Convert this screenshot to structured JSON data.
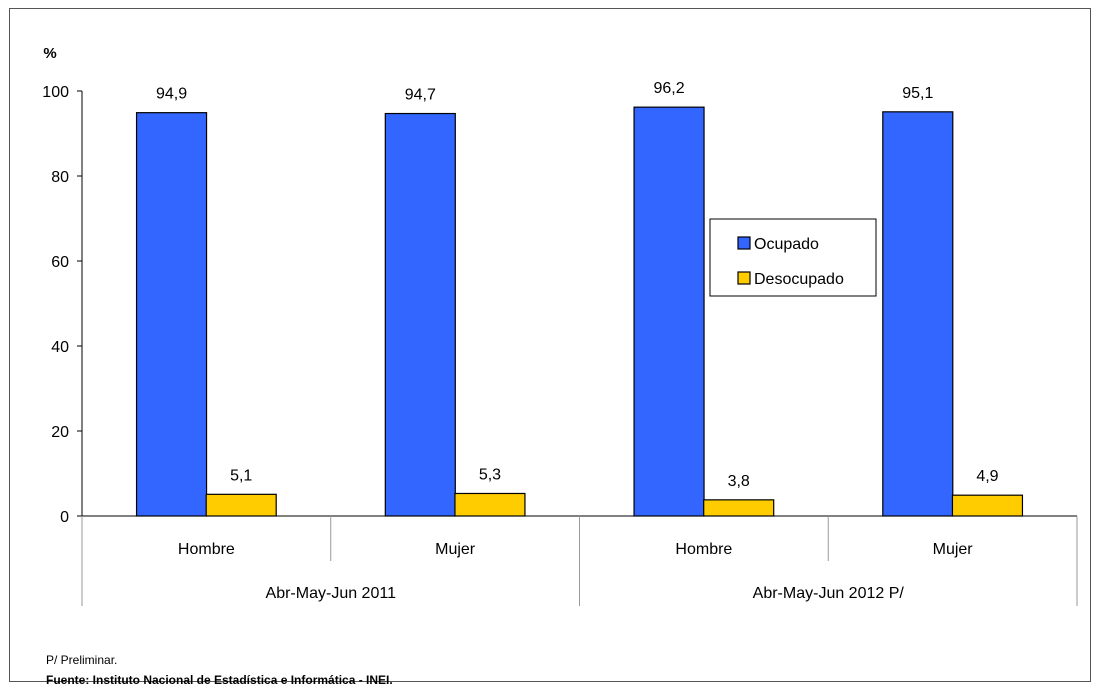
{
  "chart_data": {
    "type": "bar",
    "ylabel": "%",
    "ylim": [
      0,
      100
    ],
    "yticks": [
      0,
      20,
      40,
      60,
      80,
      100
    ],
    "groups": [
      {
        "label": "Abr-May-Jun 2011",
        "categories": [
          "Hombre",
          "Mujer"
        ]
      },
      {
        "label": "Abr-May-Jun 2012 P/",
        "categories": [
          "Hombre",
          "Mujer"
        ]
      }
    ],
    "categories": [
      "Hombre",
      "Mujer",
      "Hombre",
      "Mujer"
    ],
    "series": [
      {
        "name": "Ocupado",
        "color": "#3366ff",
        "values": [
          94.9,
          94.7,
          96.2,
          95.1
        ],
        "labels": [
          "94,9",
          "94,7",
          "96,2",
          "95,1"
        ]
      },
      {
        "name": "Desocupado",
        "color": "#ffcc00",
        "values": [
          5.1,
          5.3,
          3.8,
          4.9
        ],
        "labels": [
          "5,1",
          "5,3",
          "3,8",
          "4,9"
        ]
      }
    ],
    "legend": "center-right",
    "grid": false
  },
  "notes": {
    "preliminar": "P/ Preliminar.",
    "source": "Fuente: Instituto Nacional de Estadística e Informática - INEI."
  }
}
